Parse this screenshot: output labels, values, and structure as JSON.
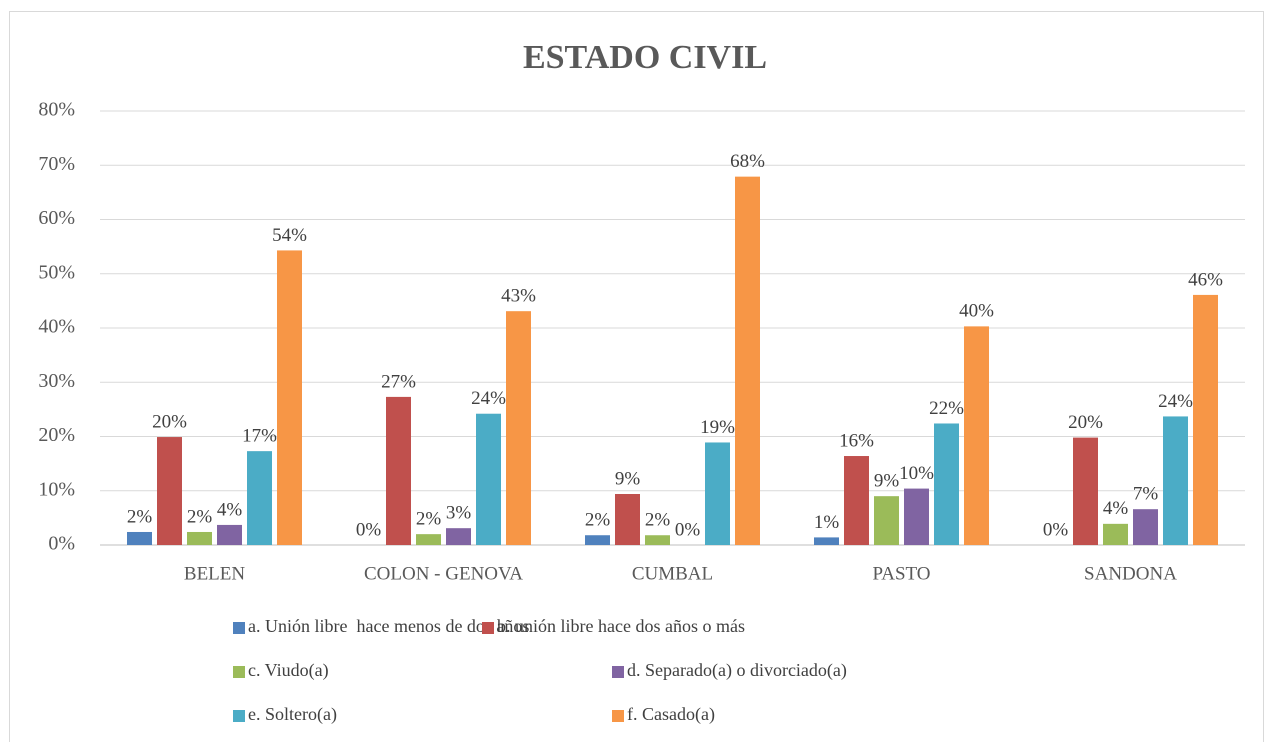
{
  "chart_data": {
    "type": "bar",
    "title": "ESTADO CIVIL",
    "categories": [
      "BELEN",
      "COLON - GENOVA",
      "CUMBAL",
      "PASTO",
      "SANDONA"
    ],
    "ylim": [
      0,
      80
    ],
    "yticks": [
      {
        "value": 0,
        "label": "0%"
      },
      {
        "value": 10,
        "label": "10%"
      },
      {
        "value": 20,
        "label": "20%"
      },
      {
        "value": 30,
        "label": "30%"
      },
      {
        "value": 40,
        "label": "40%"
      },
      {
        "value": 50,
        "label": "50%"
      },
      {
        "value": 60,
        "label": "60%"
      },
      {
        "value": 70,
        "label": "70%"
      },
      {
        "value": 80,
        "label": "80%"
      }
    ],
    "grid": true,
    "legend": "bottom",
    "series": [
      {
        "name": "a. Unión libre  hace menos de dos años",
        "color": "#4f81bd",
        "values": [
          2.4,
          0,
          1.8,
          1.4,
          0
        ],
        "value_labels": [
          "2%",
          "0%",
          "2%",
          "1%",
          "0%"
        ]
      },
      {
        "name": "b. unión libre hace dos años o más",
        "color": "#c0504d",
        "values": [
          19.9,
          27.3,
          9.4,
          16.4,
          19.8
        ],
        "value_labels": [
          "20%",
          "27%",
          "9%",
          "16%",
          "20%"
        ]
      },
      {
        "name": "c. Viudo(a)",
        "color": "#9bbb59",
        "values": [
          2.4,
          2.0,
          1.8,
          9.0,
          3.9
        ],
        "value_labels": [
          "2%",
          "2%",
          "2%",
          "9%",
          "4%"
        ]
      },
      {
        "name": "d. Separado(a) o divorciado(a)",
        "color": "#8064a2",
        "values": [
          3.7,
          3.1,
          0,
          10.4,
          6.6
        ],
        "value_labels": [
          "4%",
          "3%",
          "0%",
          "10%",
          "7%"
        ]
      },
      {
        "name": "e. Soltero(a)",
        "color": "#4bacc6",
        "values": [
          17.3,
          24.2,
          18.9,
          22.4,
          23.7
        ],
        "value_labels": [
          "17%",
          "24%",
          "19%",
          "22%",
          "24%"
        ]
      },
      {
        "name": "f. Casado(a)",
        "color": "#f79646",
        "values": [
          54.3,
          43.1,
          67.9,
          40.3,
          46.1
        ],
        "value_labels": [
          "54%",
          "43%",
          "68%",
          "40%",
          "46%"
        ]
      }
    ]
  }
}
